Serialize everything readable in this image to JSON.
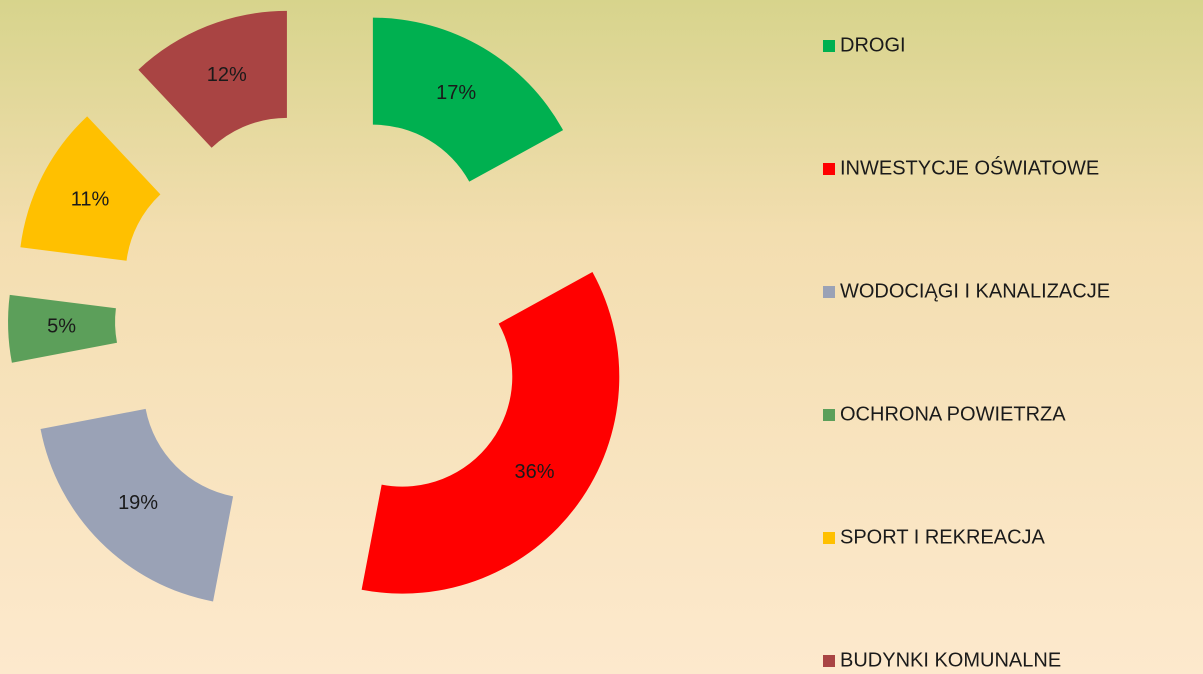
{
  "chart_data": {
    "type": "donut",
    "categories": [
      "DROGI",
      "INWESTYCJE OŚWIATOWE",
      "WODOCIĄGI I KANALIZACJE",
      "OCHRONA POWIETRZA",
      "SPORT I REKREACJA",
      "BUDYNKI KOMUNALNE"
    ],
    "values": [
      17,
      36,
      19,
      5,
      11,
      12
    ],
    "value_labels": [
      "17%",
      "36%",
      "19%",
      "5%",
      "11%",
      "12%"
    ],
    "colors": [
      "#00b050",
      "#ff0000",
      "#9aa2b6",
      "#5c9f5a",
      "#ffc000",
      "#a94443"
    ],
    "legend": "right"
  }
}
